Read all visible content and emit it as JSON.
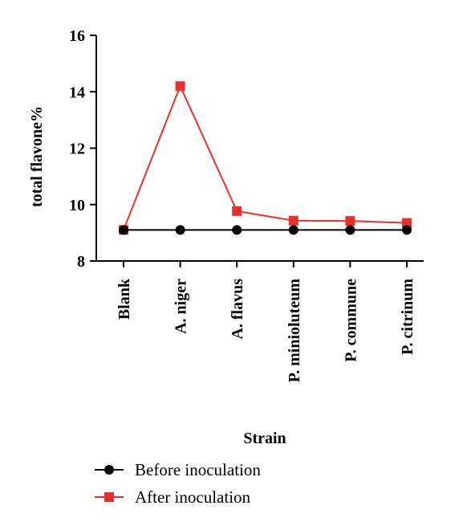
{
  "chart_data": {
    "type": "line",
    "title": "",
    "xlabel": "Strain",
    "ylabel": "total flavone%",
    "categories": [
      "Blank",
      "A. niger",
      "A. flavus",
      "P. minioluteum",
      "P. commune",
      "P. citrinum"
    ],
    "ylim": [
      8,
      16
    ],
    "yticks": [
      8,
      10,
      12,
      14,
      16
    ],
    "grid": false,
    "legend_position": "bottom-left",
    "series": [
      {
        "name": "Before inoculation",
        "values": [
          9.1,
          9.1,
          9.1,
          9.1,
          9.1,
          9.1
        ],
        "color": "#000000",
        "marker": "circle"
      },
      {
        "name": "After inoculation",
        "values": [
          9.1,
          14.2,
          9.77,
          9.43,
          9.42,
          9.35
        ],
        "color": "#e8312f",
        "marker": "square"
      }
    ]
  }
}
